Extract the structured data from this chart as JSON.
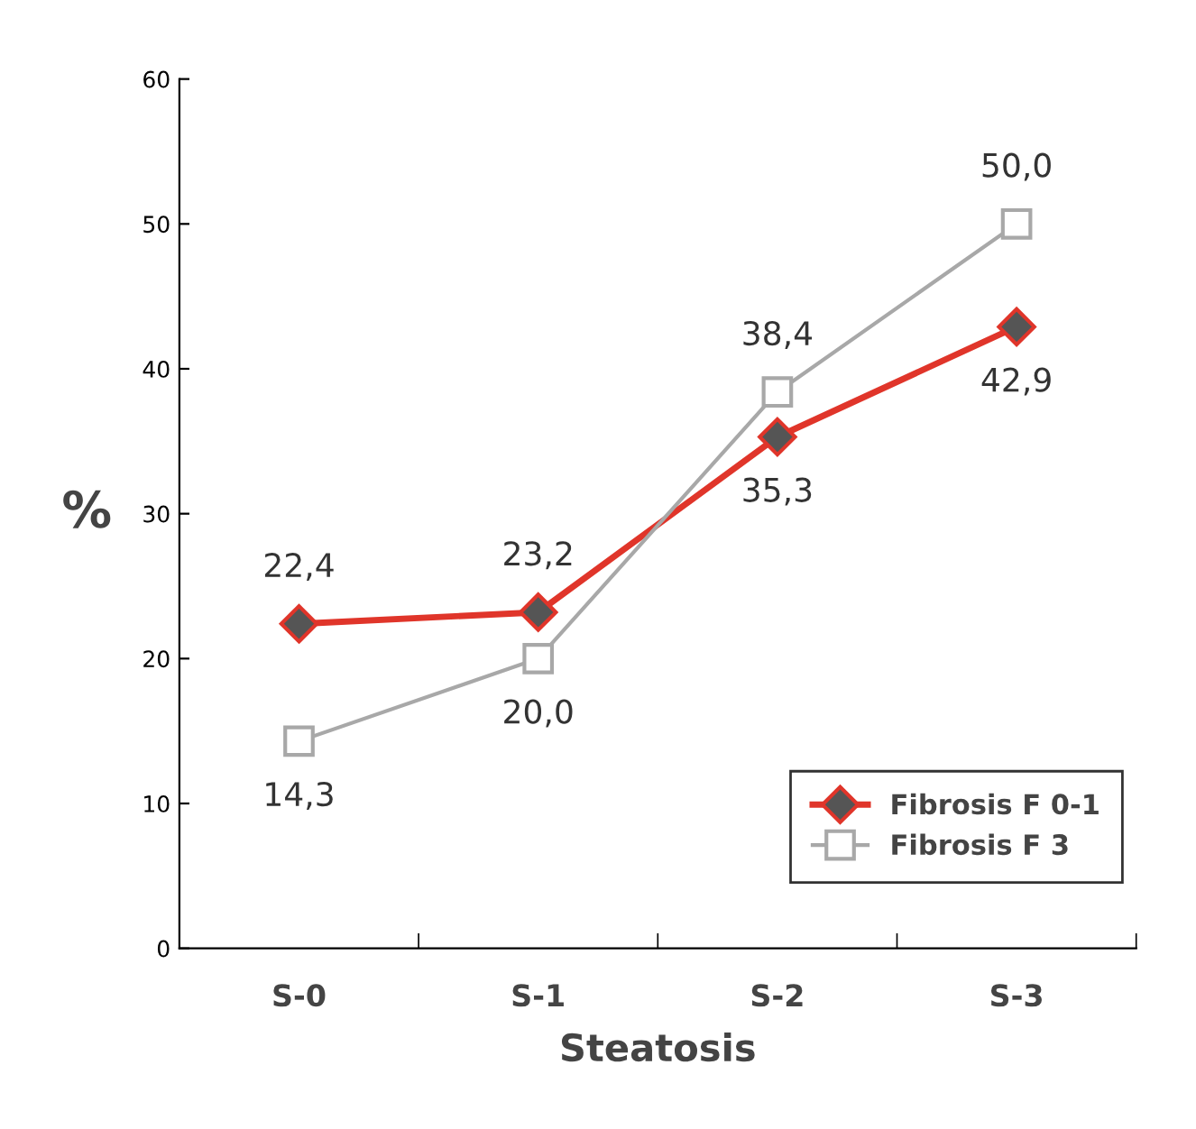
{
  "chart_data": {
    "type": "line",
    "xlabel": "Steatosis",
    "ylabel": "%",
    "categories": [
      "S-0",
      "S-1",
      "S-2",
      "S-3"
    ],
    "series": [
      {
        "name": "Fibrosis F 0-1",
        "color": "#e0352a",
        "marker": "diamond",
        "values": [
          22.4,
          23.2,
          35.3,
          42.9
        ],
        "value_labels": [
          "22,4",
          "23,2",
          "35,3",
          "42,9"
        ]
      },
      {
        "name": "Fibrosis F 3",
        "color": "#a8a8a8",
        "marker": "square",
        "values": [
          14.3,
          20.0,
          38.4,
          50.0
        ],
        "value_labels": [
          "14,3",
          "20,0",
          "38,4",
          "50,0"
        ]
      }
    ],
    "ylim": [
      0,
      60
    ],
    "yticks": [
      0,
      10,
      20,
      30,
      40,
      50,
      60
    ],
    "grid": false,
    "legend": "bottom right"
  }
}
